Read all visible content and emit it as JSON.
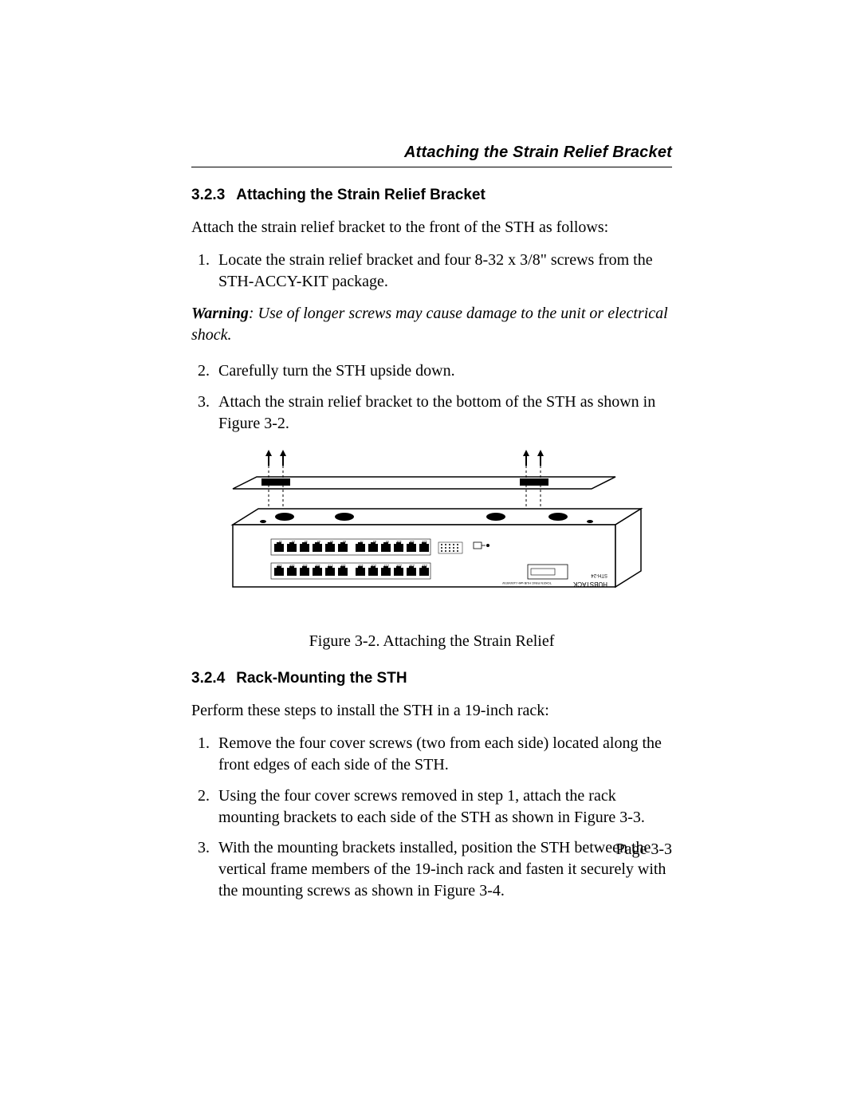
{
  "running_head": "Attaching the Strain Relief Bracket",
  "section1": {
    "number": "3.2.3",
    "title": "Attaching the Strain Relief Bracket",
    "intro": "Attach the strain relief bracket to the front of the STH as follows:",
    "step1": "Locate the strain relief bracket and four 8-32 x 3/8\" screws from the STH-ACCY-KIT package.",
    "warning_label": "Warning",
    "warning_text": ": Use of longer screws may cause damage to the unit or electrical shock.",
    "step2": "Carefully turn the STH upside down.",
    "step3": "Attach the strain relief bracket to the bottom of the STH as shown in Figure 3-2."
  },
  "figure": {
    "caption": "Figure 3-2.  Attaching the Strain Relief",
    "stroke": "#000000",
    "fill_light": "#ffffff",
    "port_labels_row1": [
      "1x",
      "2x",
      "3x",
      "4x",
      "5x",
      "6x",
      "7x",
      "8x",
      "9x",
      "10x",
      "11x",
      "12x"
    ],
    "port_labels_row2": [
      "13x",
      "14x",
      "15x",
      "16x",
      "17x",
      "18x",
      "19x",
      "20x",
      "21x",
      "22x",
      "23x",
      "24x"
    ],
    "brand_upside": "HUBSTACK",
    "model_upside": "STH-24",
    "tag_upside": "TOKEN RING HUB with LANVIEW"
  },
  "section2": {
    "number": "3.2.4",
    "title": "Rack-Mounting the STH",
    "intro": "Perform these steps to install the STH in a 19-inch rack:",
    "step1": "Remove the four cover screws (two from each side) located along the front edges of each side of the STH.",
    "step2": "Using the four cover screws removed in step 1, attach the rack mounting brackets to each side of the STH as shown in Figure 3-3.",
    "step3": "With the mounting brackets installed, position the STH between the vertical frame members of the 19-inch rack and fasten it securely with the mounting screws as shown in Figure 3-4."
  },
  "page_number": "Page 3-3"
}
